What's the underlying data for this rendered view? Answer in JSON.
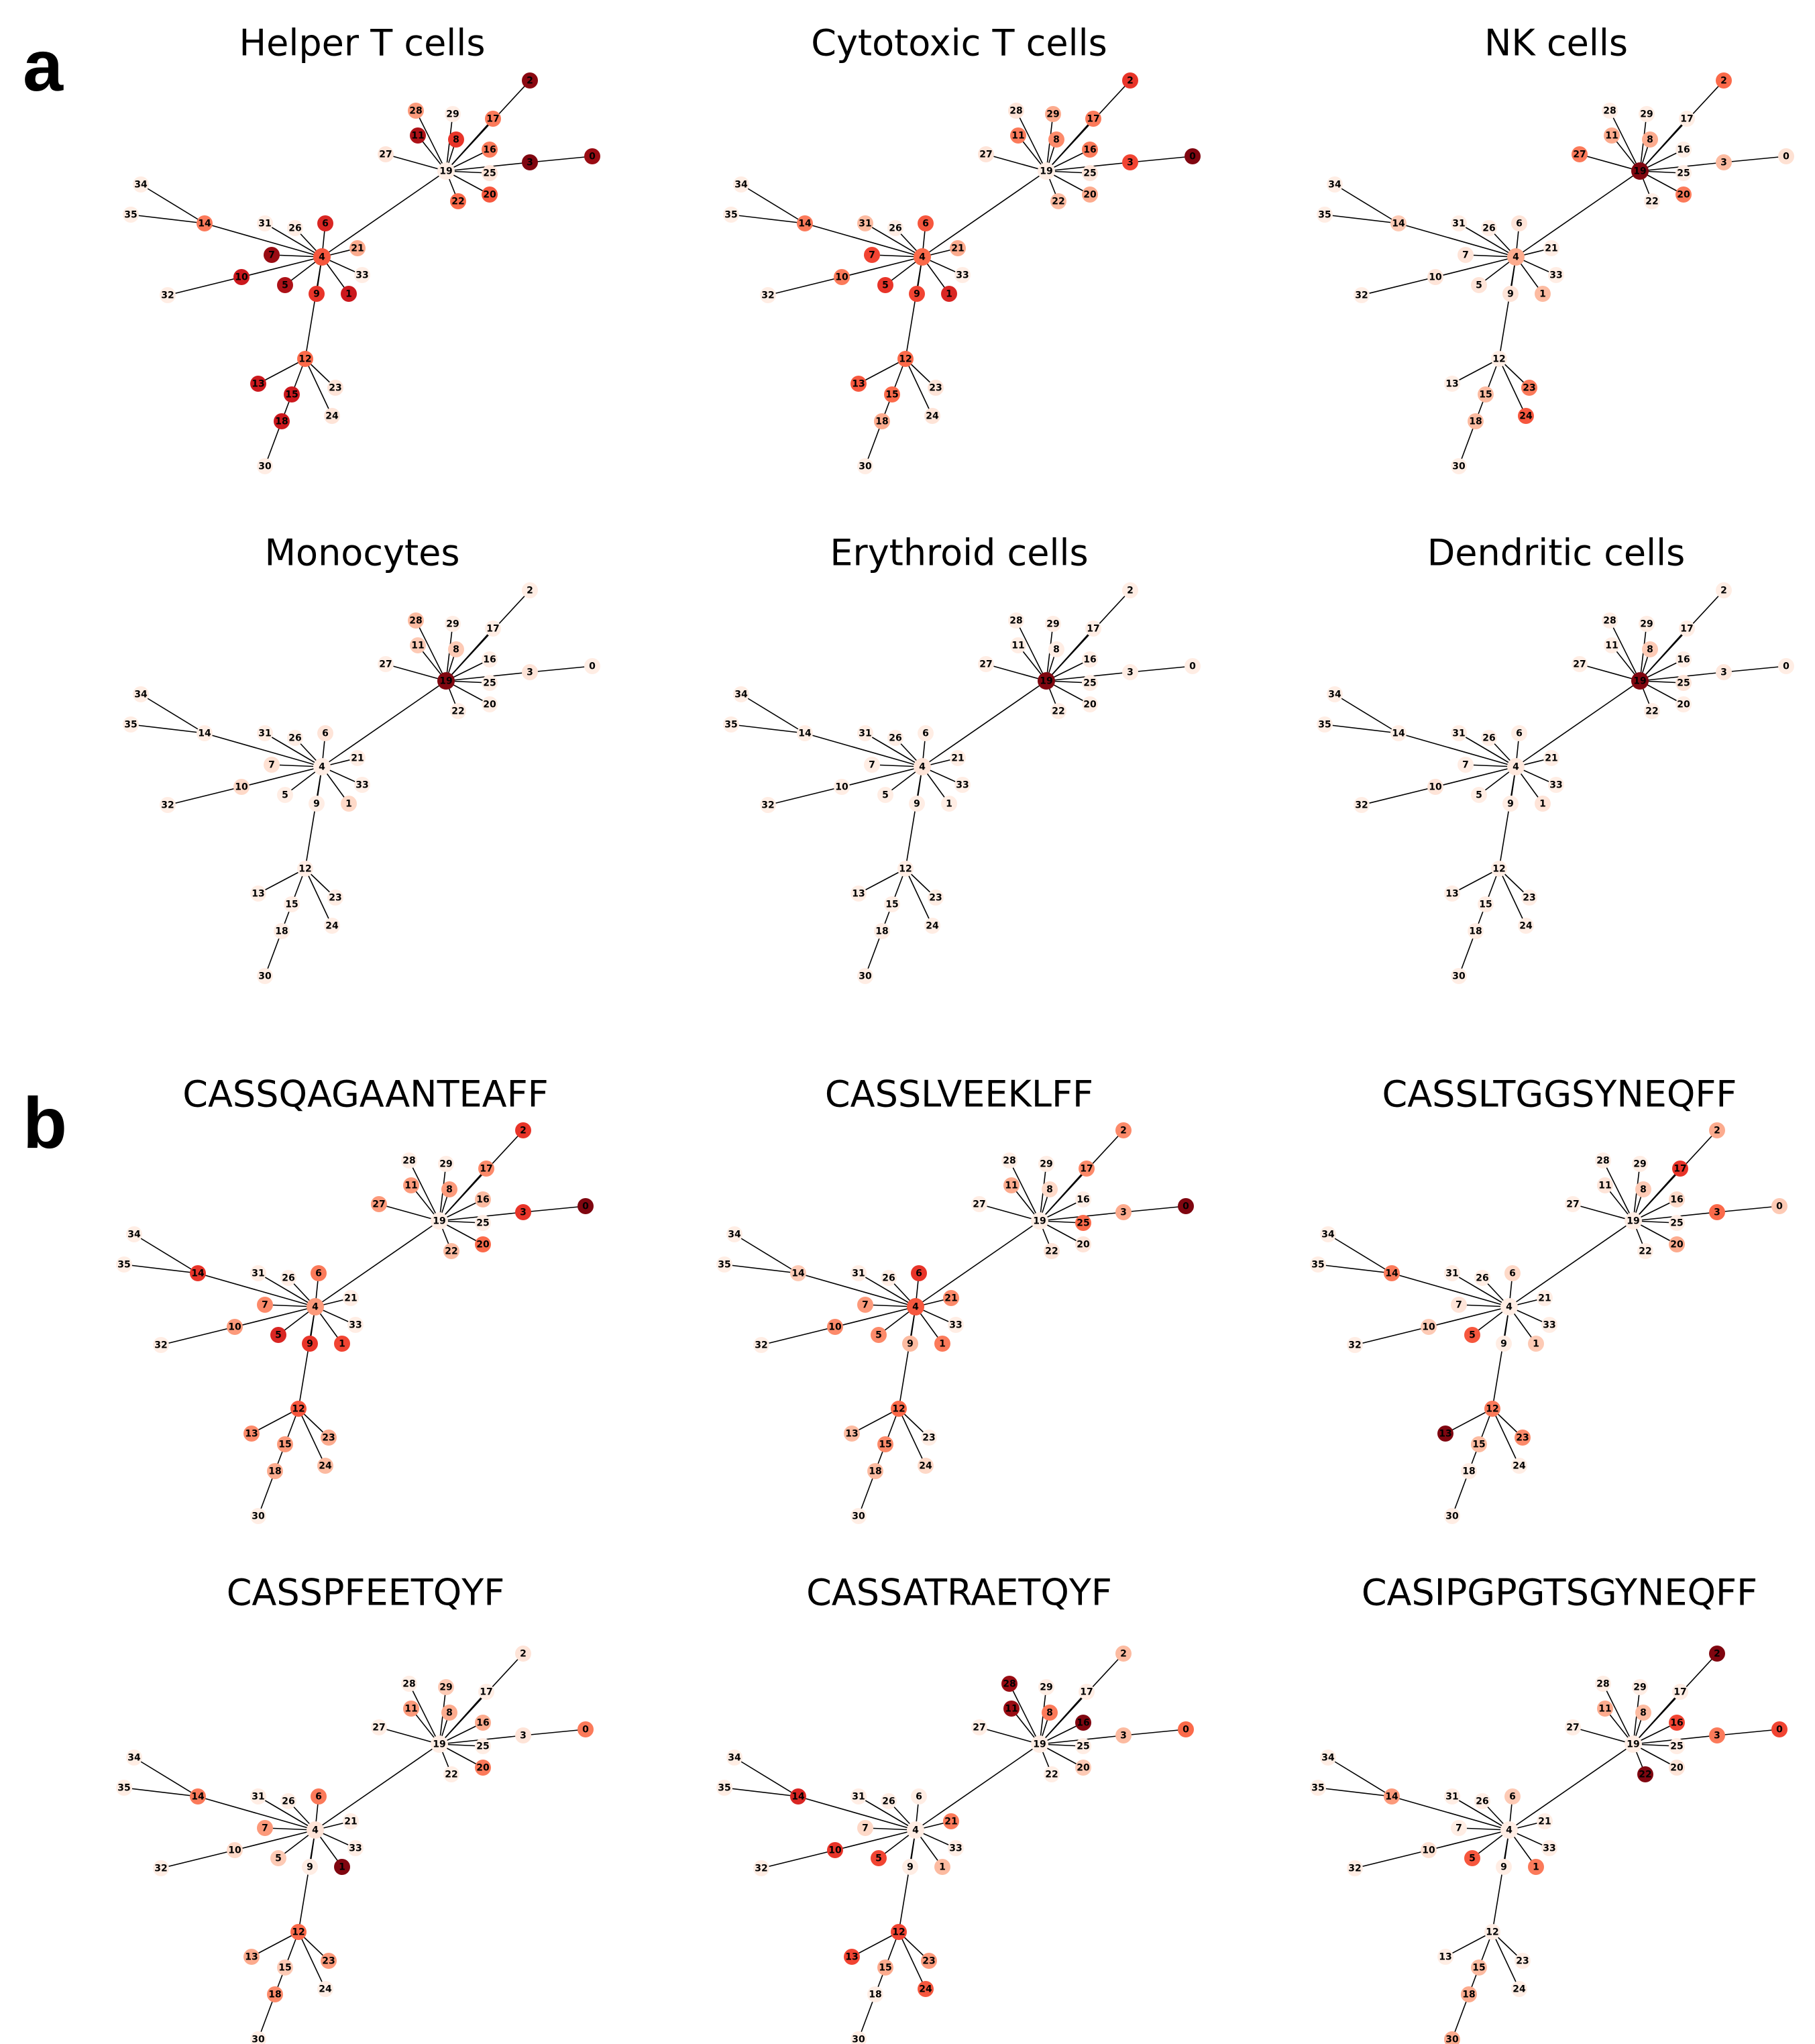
{
  "panel_letters": [
    "a",
    "b"
  ],
  "colormap": {
    "name": "Reds",
    "stops": [
      "#fff5f0",
      "#fee0d2",
      "#fcbba1",
      "#fc9272",
      "#fb6a4a",
      "#ef3b2c",
      "#cb181d",
      "#a50f15",
      "#67000d"
    ]
  },
  "edge_color": "#000000",
  "graph": {
    "node_ids": [
      "0",
      "1",
      "2",
      "3",
      "4",
      "5",
      "6",
      "7",
      "8",
      "9",
      "10",
      "11",
      "12",
      "13",
      "14",
      "15",
      "16",
      "17",
      "18",
      "19",
      "20",
      "21",
      "22",
      "23",
      "24",
      "25",
      "26",
      "27",
      "28",
      "29",
      "30",
      "31",
      "32",
      "33",
      "34",
      "35"
    ],
    "edges": [
      [
        19,
        4
      ],
      [
        19,
        28
      ],
      [
        19,
        29
      ],
      [
        19,
        2
      ],
      [
        19,
        17
      ],
      [
        19,
        11
      ],
      [
        19,
        8
      ],
      [
        19,
        16
      ],
      [
        19,
        27
      ],
      [
        19,
        3
      ],
      [
        3,
        0
      ],
      [
        19,
        25
      ],
      [
        19,
        20
      ],
      [
        19,
        22
      ],
      [
        4,
        31
      ],
      [
        4,
        26
      ],
      [
        4,
        6
      ],
      [
        4,
        21
      ],
      [
        4,
        7
      ],
      [
        4,
        14
      ],
      [
        14,
        34
      ],
      [
        14,
        35
      ],
      [
        4,
        10
      ],
      [
        10,
        32
      ],
      [
        4,
        5
      ],
      [
        4,
        9
      ],
      [
        4,
        1
      ],
      [
        4,
        33
      ],
      [
        4,
        12
      ],
      [
        12,
        13
      ],
      [
        12,
        15
      ],
      [
        15,
        18
      ],
      [
        18,
        30
      ],
      [
        12,
        23
      ],
      [
        12,
        24
      ]
    ]
  },
  "panels": [
    {
      "group": "a",
      "title": "Helper T cells",
      "node_levels": {
        "0": 0.9,
        "1": 0.75,
        "2": 0.93,
        "3": 0.95,
        "4": 0.55,
        "5": 0.85,
        "6": 0.7,
        "7": 0.9,
        "8": 0.65,
        "9": 0.65,
        "10": 0.75,
        "11": 0.85,
        "12": 0.5,
        "13": 0.75,
        "14": 0.45,
        "15": 0.75,
        "16": 0.45,
        "17": 0.45,
        "18": 0.75,
        "19": 0.05,
        "20": 0.55,
        "21": 0.3,
        "22": 0.5,
        "23": 0.1,
        "24": 0.1,
        "25": 0.1,
        "26": 0.05,
        "27": 0.1,
        "28": 0.35,
        "29": 0.05,
        "30": 0.05,
        "31": 0.05,
        "32": 0.05,
        "33": 0.05,
        "34": 0.05,
        "35": 0.05
      }
    },
    {
      "group": "a",
      "title": "Cytotoxic T cells",
      "node_levels": {
        "0": 0.95,
        "1": 0.7,
        "2": 0.65,
        "3": 0.6,
        "4": 0.5,
        "5": 0.65,
        "6": 0.55,
        "7": 0.6,
        "8": 0.4,
        "9": 0.6,
        "10": 0.45,
        "11": 0.45,
        "12": 0.5,
        "13": 0.55,
        "14": 0.45,
        "15": 0.5,
        "16": 0.45,
        "17": 0.45,
        "18": 0.3,
        "19": 0.05,
        "20": 0.3,
        "21": 0.3,
        "22": 0.25,
        "23": 0.1,
        "24": 0.1,
        "25": 0.1,
        "26": 0.05,
        "27": 0.1,
        "28": 0.1,
        "29": 0.3,
        "30": 0.05,
        "31": 0.25,
        "32": 0.05,
        "33": 0.05,
        "34": 0.05,
        "35": 0.05
      }
    },
    {
      "group": "a",
      "title": "NK cells",
      "node_levels": {
        "0": 0.12,
        "1": 0.25,
        "2": 0.5,
        "3": 0.25,
        "4": 0.3,
        "5": 0.1,
        "6": 0.1,
        "7": 0.1,
        "8": 0.3,
        "9": 0.1,
        "10": 0.1,
        "11": 0.3,
        "12": 0.05,
        "13": 0.05,
        "14": 0.2,
        "15": 0.25,
        "16": 0.05,
        "17": 0.05,
        "18": 0.25,
        "19": 0.95,
        "20": 0.45,
        "21": 0.05,
        "22": 0.05,
        "23": 0.45,
        "24": 0.55,
        "25": 0.05,
        "26": 0.05,
        "27": 0.45,
        "28": 0.05,
        "29": 0.05,
        "30": 0.05,
        "31": 0.05,
        "32": 0.05,
        "33": 0.05,
        "34": 0.05,
        "35": 0.05
      }
    },
    {
      "group": "a",
      "title": "Monocytes",
      "node_levels": {
        "0": 0.05,
        "1": 0.15,
        "2": 0.05,
        "3": 0.1,
        "4": 0.05,
        "5": 0.05,
        "6": 0.1,
        "7": 0.12,
        "8": 0.2,
        "9": 0.05,
        "10": 0.15,
        "11": 0.2,
        "12": 0.05,
        "13": 0.05,
        "14": 0.05,
        "15": 0.05,
        "16": 0.05,
        "17": 0.05,
        "18": 0.05,
        "19": 0.95,
        "20": 0.05,
        "21": 0.05,
        "22": 0.05,
        "23": 0.05,
        "24": 0.05,
        "25": 0.05,
        "26": 0.05,
        "27": 0.05,
        "28": 0.25,
        "29": 0.05,
        "30": 0.05,
        "31": 0.05,
        "32": 0.05,
        "33": 0.05,
        "34": 0.05,
        "35": 0.05
      }
    },
    {
      "group": "a",
      "title": "Erythroid cells",
      "node_levels": {
        "0": 0.05,
        "1": 0.05,
        "2": 0.05,
        "3": 0.05,
        "4": 0.1,
        "5": 0.05,
        "6": 0.05,
        "7": 0.05,
        "8": 0.05,
        "9": 0.05,
        "10": 0.05,
        "11": 0.05,
        "12": 0.05,
        "13": 0.05,
        "14": 0.05,
        "15": 0.05,
        "16": 0.05,
        "17": 0.05,
        "18": 0.05,
        "19": 0.95,
        "20": 0.05,
        "21": 0.05,
        "22": 0.05,
        "23": 0.05,
        "24": 0.05,
        "25": 0.05,
        "26": 0.05,
        "27": 0.05,
        "28": 0.05,
        "29": 0.05,
        "30": 0.05,
        "31": 0.05,
        "32": 0.05,
        "33": 0.05,
        "34": 0.05,
        "35": 0.05
      }
    },
    {
      "group": "a",
      "title": "Dendritic cells",
      "node_levels": {
        "0": 0.05,
        "1": 0.1,
        "2": 0.05,
        "3": 0.08,
        "4": 0.08,
        "5": 0.05,
        "6": 0.05,
        "7": 0.05,
        "8": 0.2,
        "9": 0.05,
        "10": 0.1,
        "11": 0.05,
        "12": 0.05,
        "13": 0.05,
        "14": 0.05,
        "15": 0.05,
        "16": 0.05,
        "17": 0.05,
        "18": 0.05,
        "19": 0.95,
        "20": 0.05,
        "21": 0.05,
        "22": 0.05,
        "23": 0.05,
        "24": 0.05,
        "25": 0.1,
        "26": 0.05,
        "27": 0.05,
        "28": 0.05,
        "29": 0.05,
        "30": 0.05,
        "31": 0.05,
        "32": 0.05,
        "33": 0.05,
        "34": 0.05,
        "35": 0.05
      }
    },
    {
      "group": "b",
      "title": "CASSQAGAANTEAFF",
      "node_levels": {
        "0": 0.95,
        "1": 0.6,
        "2": 0.65,
        "3": 0.65,
        "4": 0.35,
        "5": 0.7,
        "6": 0.45,
        "7": 0.4,
        "8": 0.35,
        "9": 0.65,
        "10": 0.35,
        "11": 0.35,
        "12": 0.55,
        "13": 0.4,
        "14": 0.65,
        "15": 0.35,
        "16": 0.25,
        "17": 0.4,
        "18": 0.3,
        "19": 0.05,
        "20": 0.5,
        "21": 0.05,
        "22": 0.25,
        "23": 0.3,
        "24": 0.25,
        "25": 0.05,
        "26": 0.05,
        "27": 0.35,
        "28": 0.05,
        "29": 0.05,
        "30": 0.05,
        "31": 0.05,
        "32": 0.05,
        "33": 0.05,
        "34": 0.05,
        "35": 0.05
      }
    },
    {
      "group": "b",
      "title": "CASSLVEEKLFF",
      "node_levels": {
        "0": 0.95,
        "1": 0.45,
        "2": 0.4,
        "3": 0.3,
        "4": 0.55,
        "5": 0.4,
        "6": 0.65,
        "7": 0.35,
        "8": 0.15,
        "9": 0.25,
        "10": 0.4,
        "11": 0.3,
        "12": 0.5,
        "13": 0.25,
        "14": 0.2,
        "15": 0.4,
        "16": 0.05,
        "17": 0.4,
        "18": 0.25,
        "19": 0.05,
        "20": 0.1,
        "21": 0.4,
        "22": 0.1,
        "23": 0.05,
        "24": 0.15,
        "25": 0.5,
        "26": 0.05,
        "27": 0.05,
        "28": 0.05,
        "29": 0.05,
        "30": 0.05,
        "31": 0.05,
        "32": 0.05,
        "33": 0.05,
        "34": 0.05,
        "35": 0.05
      }
    },
    {
      "group": "b",
      "title": "CASSLTGGSYNEQFF",
      "node_levels": {
        "0": 0.2,
        "1": 0.2,
        "2": 0.3,
        "3": 0.5,
        "4": 0.05,
        "5": 0.55,
        "6": 0.15,
        "7": 0.1,
        "8": 0.2,
        "9": 0.05,
        "10": 0.2,
        "11": 0.1,
        "12": 0.45,
        "13": 0.95,
        "14": 0.45,
        "15": 0.25,
        "16": 0.15,
        "17": 0.65,
        "18": 0.05,
        "19": 0.05,
        "20": 0.3,
        "21": 0.05,
        "22": 0.05,
        "23": 0.4,
        "24": 0.05,
        "25": 0.05,
        "26": 0.05,
        "27": 0.05,
        "28": 0.05,
        "29": 0.05,
        "30": 0.05,
        "31": 0.05,
        "32": 0.05,
        "33": 0.05,
        "34": 0.05,
        "35": 0.05
      }
    },
    {
      "group": "b",
      "title": "CASSPFEETQYF",
      "node_levels": {
        "0": 0.45,
        "1": 0.95,
        "2": 0.1,
        "3": 0.1,
        "4": 0.1,
        "5": 0.2,
        "6": 0.45,
        "7": 0.35,
        "8": 0.3,
        "9": 0.05,
        "10": 0.15,
        "11": 0.35,
        "12": 0.5,
        "13": 0.3,
        "14": 0.45,
        "15": 0.2,
        "16": 0.3,
        "17": 0.05,
        "18": 0.4,
        "19": 0.05,
        "20": 0.45,
        "21": 0.05,
        "22": 0.05,
        "23": 0.35,
        "24": 0.05,
        "25": 0.05,
        "26": 0.05,
        "27": 0.05,
        "28": 0.05,
        "29": 0.2,
        "30": 0.05,
        "31": 0.05,
        "32": 0.05,
        "33": 0.05,
        "34": 0.05,
        "35": 0.05
      }
    },
    {
      "group": "b",
      "title": "CASSATRAETQYF",
      "node_levels": {
        "0": 0.5,
        "1": 0.25,
        "2": 0.25,
        "3": 0.25,
        "4": 0.05,
        "5": 0.6,
        "6": 0.05,
        "7": 0.15,
        "8": 0.45,
        "9": 0.05,
        "10": 0.65,
        "11": 0.9,
        "12": 0.6,
        "13": 0.6,
        "14": 0.7,
        "15": 0.3,
        "16": 0.95,
        "17": 0.05,
        "18": 0.05,
        "19": 0.05,
        "20": 0.2,
        "21": 0.45,
        "22": 0.05,
        "23": 0.35,
        "24": 0.55,
        "25": 0.05,
        "26": 0.05,
        "27": 0.05,
        "28": 0.9,
        "29": 0.05,
        "30": 0.05,
        "31": 0.05,
        "32": 0.05,
        "33": 0.05,
        "34": 0.05,
        "35": 0.05
      }
    },
    {
      "group": "b",
      "title": "CASIPGPGTSGYNEQFF",
      "node_levels": {
        "0": 0.6,
        "1": 0.45,
        "2": 0.95,
        "3": 0.45,
        "4": 0.05,
        "5": 0.55,
        "6": 0.2,
        "7": 0.05,
        "8": 0.25,
        "9": 0.05,
        "10": 0.12,
        "11": 0.3,
        "12": 0.05,
        "13": 0.05,
        "14": 0.35,
        "15": 0.25,
        "16": 0.6,
        "17": 0.05,
        "18": 0.3,
        "19": 0.05,
        "20": 0.1,
        "21": 0.05,
        "22": 0.95,
        "23": 0.05,
        "24": 0.05,
        "25": 0.05,
        "26": 0.05,
        "27": 0.05,
        "28": 0.05,
        "29": 0.05,
        "30": 0.3,
        "31": 0.05,
        "32": 0.05,
        "33": 0.05,
        "34": 0.05,
        "35": 0.05
      }
    }
  ]
}
